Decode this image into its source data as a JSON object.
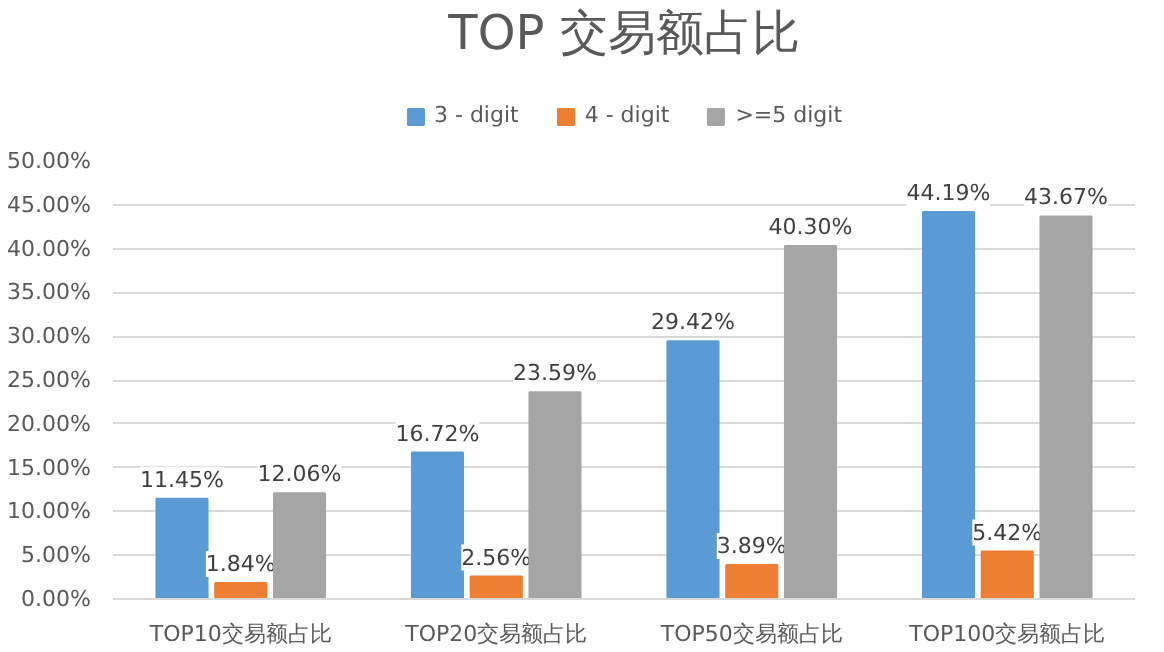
{
  "chart_data": {
    "type": "bar",
    "title": "TOP 交易额占比",
    "categories": [
      "TOP10交易额占比",
      "TOP20交易额占比",
      "TOP50交易额占比",
      "TOP100交易额占比"
    ],
    "series": [
      {
        "name": "3 - digit",
        "color": "#5b9bd5",
        "values": [
          11.45,
          16.72,
          29.42,
          44.19
        ],
        "value_labels": [
          "11.45%",
          "16.72%",
          "29.42%",
          "44.19%"
        ]
      },
      {
        "name": "4 - digit",
        "color": "#ed7d31",
        "values": [
          1.84,
          2.56,
          3.89,
          5.42
        ],
        "value_labels": [
          "1.84%",
          "2.56%",
          "3.89%",
          "5.42%"
        ]
      },
      {
        "name": ">=5 digit",
        "color": "#a5a5a5",
        "values": [
          12.06,
          23.59,
          40.3,
          43.67
        ],
        "value_labels": [
          "12.06%",
          "23.59%",
          "40.30%",
          "43.67%"
        ]
      }
    ],
    "ylim": [
      0,
      50
    ],
    "yticks": [
      {
        "value": 0,
        "label": "0.00%"
      },
      {
        "value": 5,
        "label": "5.00%"
      },
      {
        "value": 10,
        "label": "10.00%"
      },
      {
        "value": 15,
        "label": "15.00%"
      },
      {
        "value": 20,
        "label": "20.00%"
      },
      {
        "value": 25,
        "label": "25.00%"
      },
      {
        "value": 30,
        "label": "30.00%"
      },
      {
        "value": 35,
        "label": "35.00%"
      },
      {
        "value": 40,
        "label": "40.00%"
      },
      {
        "value": 45,
        "label": "45.00%"
      },
      {
        "value": 50,
        "label": "50.00%"
      }
    ],
    "grid": "y",
    "legend": "top"
  }
}
